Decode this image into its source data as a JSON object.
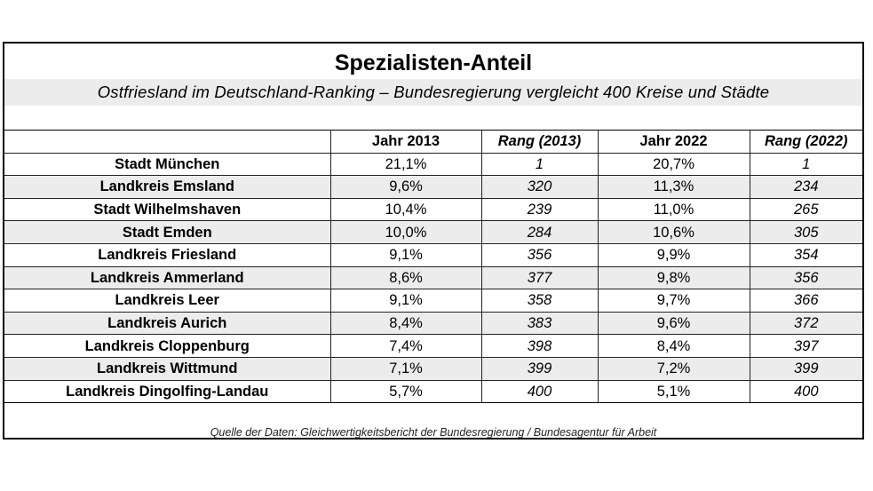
{
  "title": "Spezialisten-Anteil",
  "subtitle": "Ostfriesland im Deutschland-Ranking – Bundesregierung vergleicht 400 Kreise und Städte",
  "columns": [
    "",
    "Jahr 2013",
    "Rang (2013)",
    "Jahr 2022",
    "Rang (2022)"
  ],
  "rows": [
    {
      "name": "Stadt München",
      "y2013": "21,1%",
      "r2013": "1",
      "y2022": "20,7%",
      "r2022": "1"
    },
    {
      "name": "Landkreis Emsland",
      "y2013": "9,6%",
      "r2013": "320",
      "y2022": "11,3%",
      "r2022": "234"
    },
    {
      "name": "Stadt Wilhelmshaven",
      "y2013": "10,4%",
      "r2013": "239",
      "y2022": "11,0%",
      "r2022": "265"
    },
    {
      "name": "Stadt Emden",
      "y2013": "10,0%",
      "r2013": "284",
      "y2022": "10,6%",
      "r2022": "305"
    },
    {
      "name": "Landkreis Friesland",
      "y2013": "9,1%",
      "r2013": "356",
      "y2022": "9,9%",
      "r2022": "354"
    },
    {
      "name": "Landkreis Ammerland",
      "y2013": "8,6%",
      "r2013": "377",
      "y2022": "9,8%",
      "r2022": "356"
    },
    {
      "name": "Landkreis Leer",
      "y2013": "9,1%",
      "r2013": "358",
      "y2022": "9,7%",
      "r2022": "366"
    },
    {
      "name": "Landkreis Aurich",
      "y2013": "8,4%",
      "r2013": "383",
      "y2022": "9,6%",
      "r2022": "372"
    },
    {
      "name": "Landkreis Cloppenburg",
      "y2013": "7,4%",
      "r2013": "398",
      "y2022": "8,4%",
      "r2022": "397"
    },
    {
      "name": "Landkreis Wittmund",
      "y2013": "7,1%",
      "r2013": "399",
      "y2022": "7,2%",
      "r2022": "399"
    },
    {
      "name": "Landkreis Dingolfing-Landau",
      "y2013": "5,7%",
      "r2013": "400",
      "y2022": "5,1%",
      "r2022": "400"
    }
  ],
  "source": "Quelle der Daten: Gleichwertigkeitsbericht der Bundesregierung / Bundesagentur für Arbeit",
  "colors": {
    "row_alt": "#ececec",
    "border": "#000000"
  }
}
